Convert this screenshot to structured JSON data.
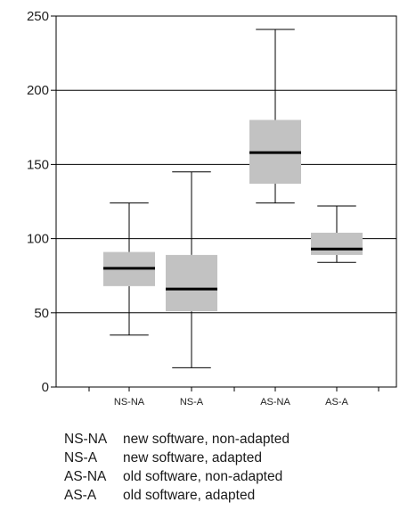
{
  "chart_data": {
    "type": "box",
    "categories": [
      "NS-NA",
      "NS-A",
      "AS-NA",
      "AS-A"
    ],
    "ylim": [
      0,
      250
    ],
    "yticks": [
      0,
      50,
      100,
      150,
      200,
      250
    ],
    "grid": true,
    "boxes": [
      {
        "label": "NS-NA",
        "min": 35,
        "q1": 68,
        "median": 80,
        "q3": 91,
        "max": 124
      },
      {
        "label": "NS-A",
        "min": 13,
        "q1": 51,
        "median": 66,
        "q3": 89,
        "max": 145
      },
      {
        "label": "AS-NA",
        "min": 124,
        "q1": 137,
        "median": 158,
        "q3": 180,
        "max": 241
      },
      {
        "label": "AS-A",
        "min": 84,
        "q1": 89,
        "median": 93,
        "q3": 104,
        "max": 122
      }
    ]
  },
  "legend": [
    {
      "code": "NS-NA",
      "description": "new software, non-adapted"
    },
    {
      "code": "NS-A",
      "description": "new software, adapted"
    },
    {
      "code": "AS-NA",
      "description": "old software, non-adapted"
    },
    {
      "code": "AS-A",
      "description": "old software, adapted"
    }
  ],
  "colors": {
    "box_fill": "#c2c2c2",
    "median": "#000000",
    "grid": "#000000"
  }
}
